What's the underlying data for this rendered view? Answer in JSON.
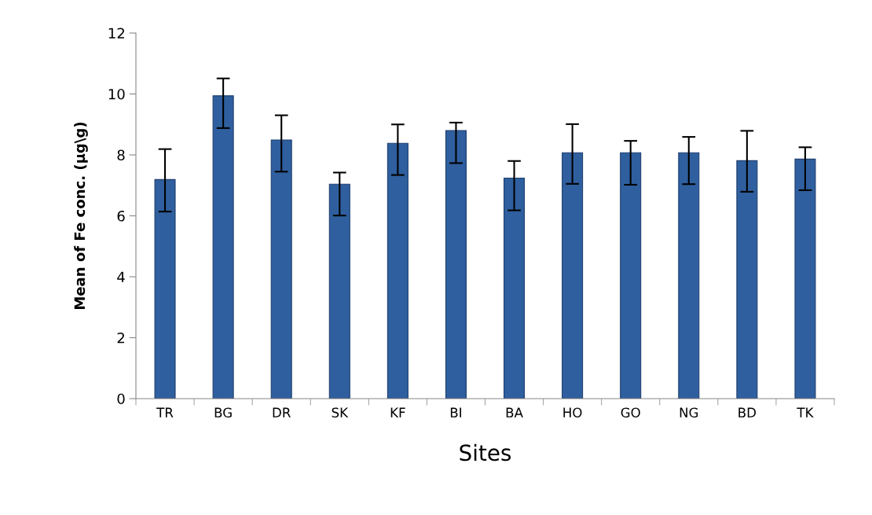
{
  "chart_data": {
    "type": "bar",
    "xlabel": "Sites",
    "ylabel": "Mean of Fe conc. (µg\\g)",
    "categories": [
      "TR",
      "BG",
      "DR",
      "SK",
      "KF",
      "BI",
      "BA",
      "HO",
      "GO",
      "NG",
      "BD",
      "TK"
    ],
    "values": [
      7.19,
      9.94,
      8.49,
      7.04,
      8.38,
      8.8,
      7.24,
      8.07,
      8.07,
      8.07,
      7.81,
      7.86
    ],
    "errors": [
      [
        6.14,
        8.19
      ],
      [
        8.88,
        10.51
      ],
      [
        7.45,
        9.3
      ],
      [
        6.01,
        7.42
      ],
      [
        7.34,
        9.0
      ],
      [
        7.73,
        9.06
      ],
      [
        6.18,
        7.8
      ],
      [
        7.05,
        9.01
      ],
      [
        7.02,
        8.46
      ],
      [
        7.04,
        8.59
      ],
      [
        6.79,
        8.79
      ],
      [
        6.84,
        8.25
      ]
    ],
    "color": "#2f5f9e",
    "ylim": [
      0,
      12
    ],
    "yticks": [
      0,
      2,
      4,
      6,
      8,
      10,
      12
    ],
    "grid": false,
    "legend": false
  }
}
